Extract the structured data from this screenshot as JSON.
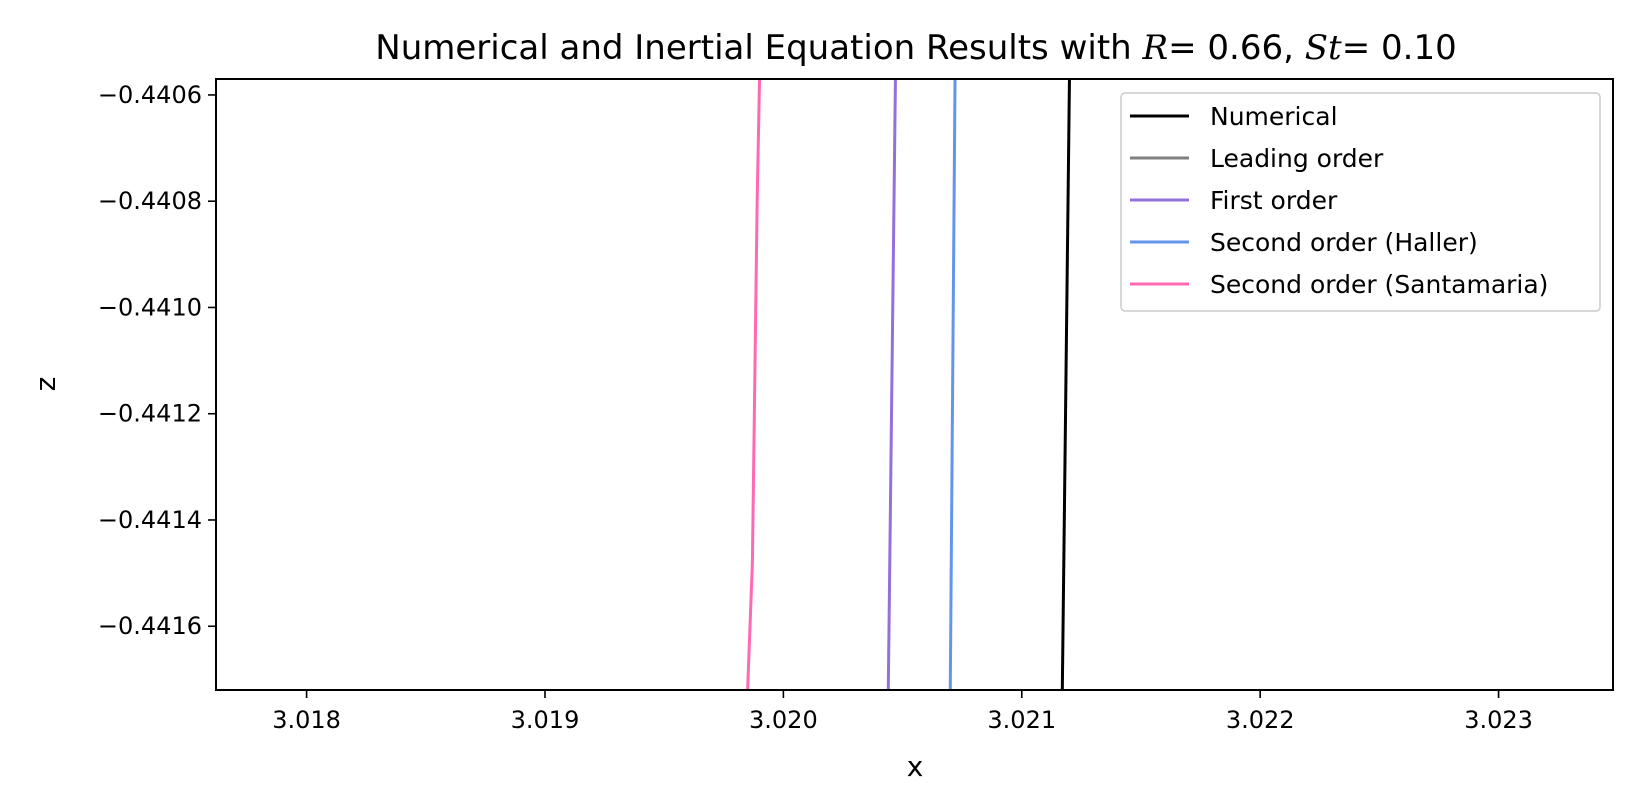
{
  "chart_data": {
    "type": "line",
    "title": {
      "prefix": "Numerical and Inertial Equation Results with ",
      "r_symbol": "R",
      "r_value": "= 0.66, ",
      "st_symbol": "St",
      "st_value": "= 0.10"
    },
    "xlabel": "x",
    "ylabel": "z",
    "xlim": [
      3.01762,
      3.02348
    ],
    "ylim": [
      -0.44172,
      -0.44057
    ],
    "x_ticks": [
      3.018,
      3.019,
      3.02,
      3.021,
      3.022,
      3.023
    ],
    "x_tick_labels": [
      "3.018",
      "3.019",
      "3.020",
      "3.021",
      "3.022",
      "3.023"
    ],
    "y_ticks": [
      -0.4406,
      -0.4408,
      -0.441,
      -0.4412,
      -0.4414,
      -0.4416
    ],
    "y_tick_labels": [
      "−0.4406",
      "−0.4408",
      "−0.4410",
      "−0.4412",
      "−0.4414",
      "−0.4416"
    ],
    "grid": false,
    "legend_position": "top-right",
    "series": [
      {
        "name": "Numerical",
        "color": "#000000",
        "x": [
          3.02117,
          3.0212
        ],
        "z": [
          -0.44172,
          -0.44057
        ]
      },
      {
        "name": "Leading order",
        "color": "#808080",
        "x": [],
        "z": []
      },
      {
        "name": "First order",
        "color": "#9370DB",
        "x": [
          3.02044,
          3.02047
        ],
        "z": [
          -0.44172,
          -0.44057
        ]
      },
      {
        "name": "Second order (Haller)",
        "color": "#6495ED",
        "x": [
          3.0207,
          3.02072
        ],
        "z": [
          -0.44172,
          -0.44057
        ]
      },
      {
        "name": "Second order (Santamaria)",
        "color": "#FF69B4",
        "x": [
          3.01985,
          3.01987,
          3.01989,
          3.0199
        ],
        "z": [
          -0.44172,
          -0.44148,
          -0.4408,
          -0.44057
        ]
      }
    ]
  }
}
